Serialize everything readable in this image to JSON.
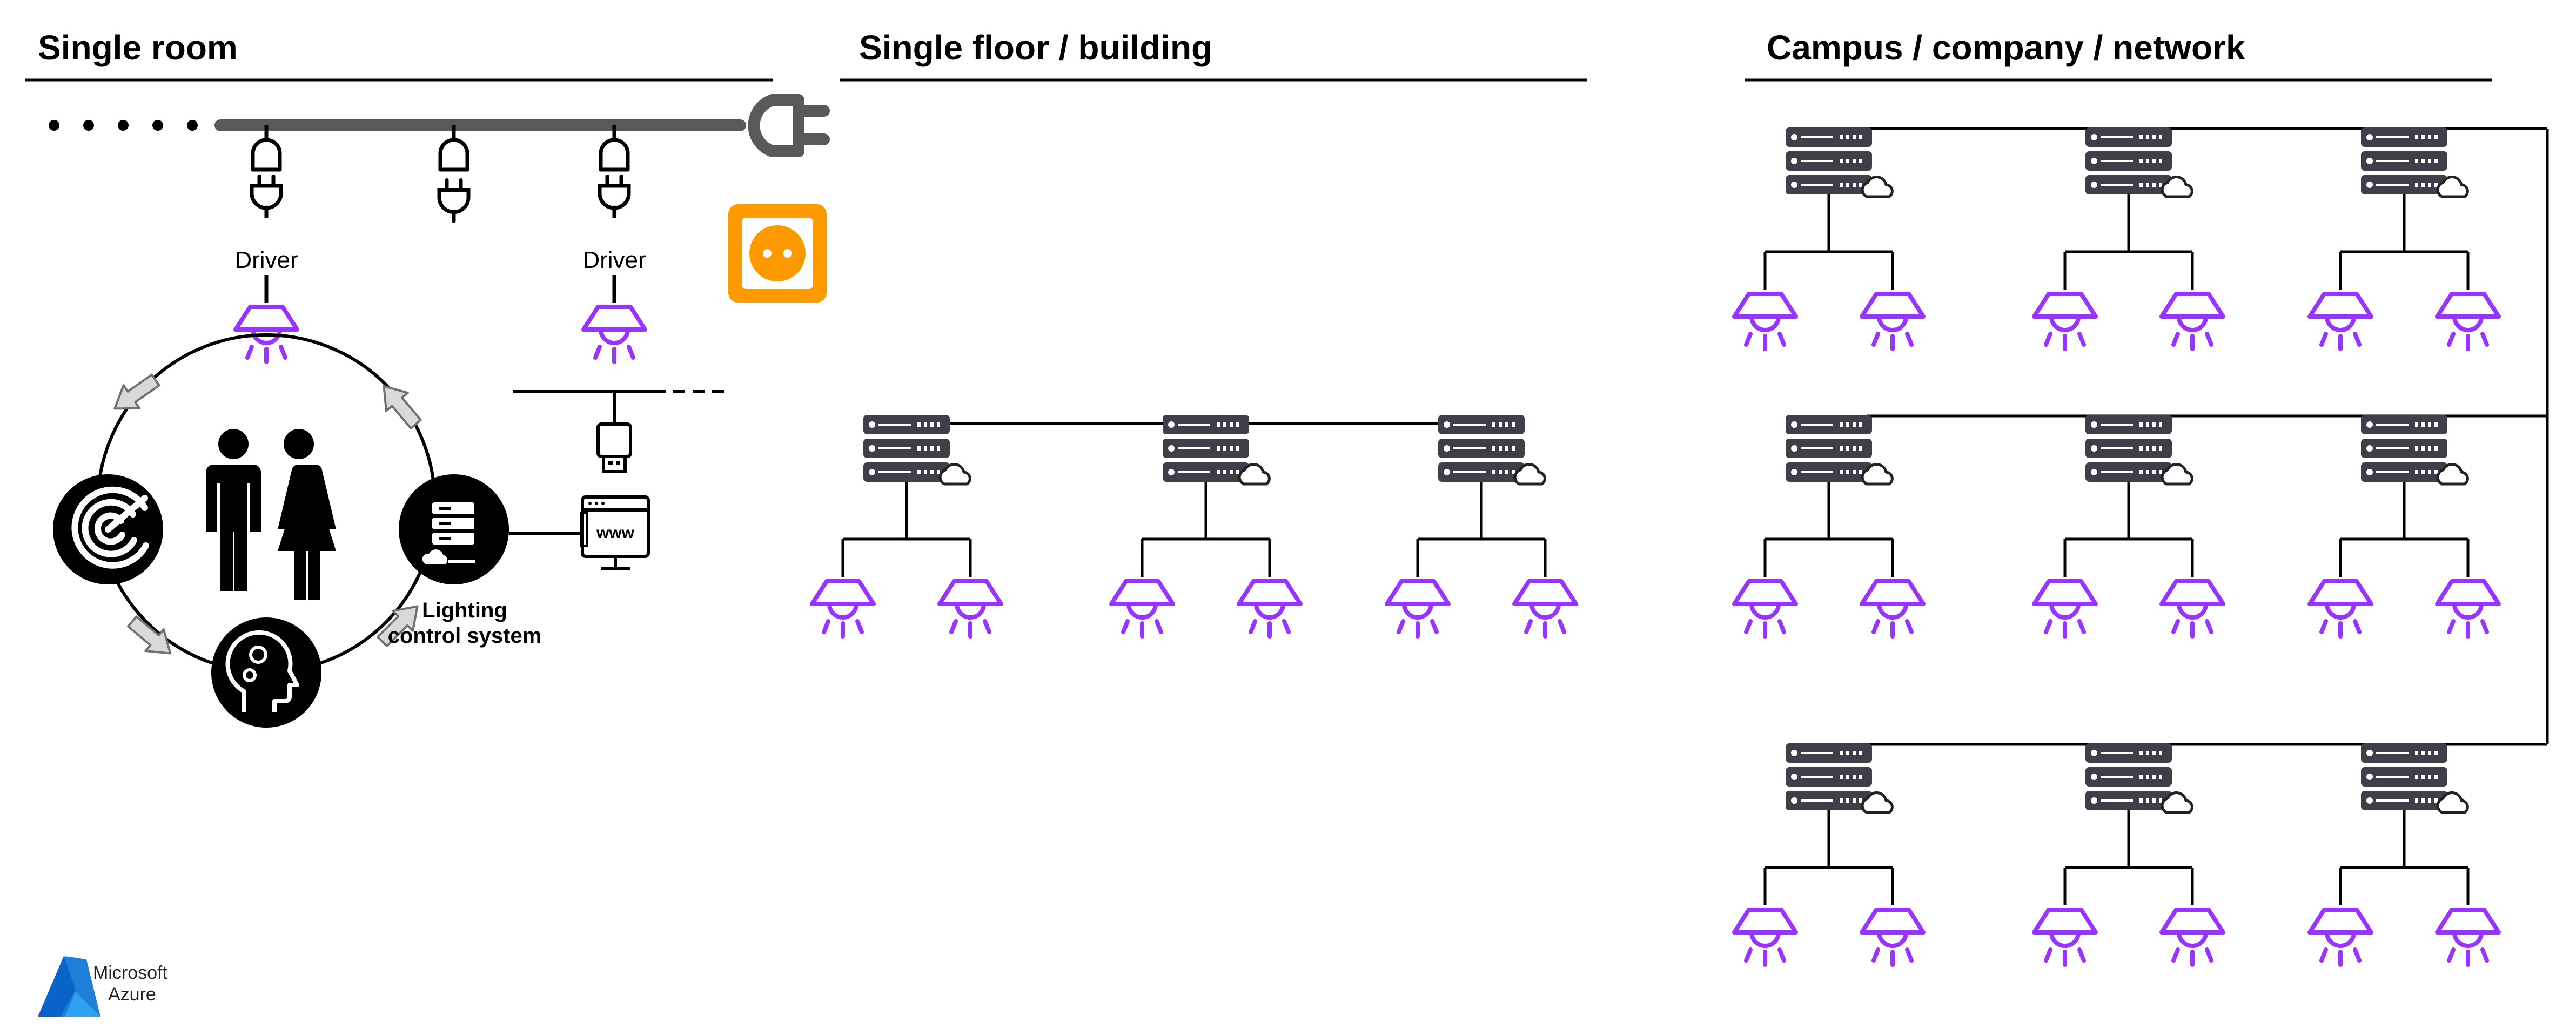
{
  "sections": [
    {
      "title": "Single room"
    },
    {
      "title": "Single floor / building"
    },
    {
      "title": "Campus / company / network"
    }
  ],
  "room": {
    "driver_labels": [
      "Driver",
      "Driver"
    ],
    "lighting_control_label_line1": "Lighting",
    "lighting_control_label_line2": "control system",
    "www_label": "www"
  },
  "logo": {
    "line1": "Microsoft",
    "line2": "Azure"
  },
  "colors": {
    "lamp": "#9933ff",
    "server": "#3f3f4a",
    "outlet": "#ff9900",
    "cable": "#595959",
    "azure_blue": "#0a63c9"
  }
}
